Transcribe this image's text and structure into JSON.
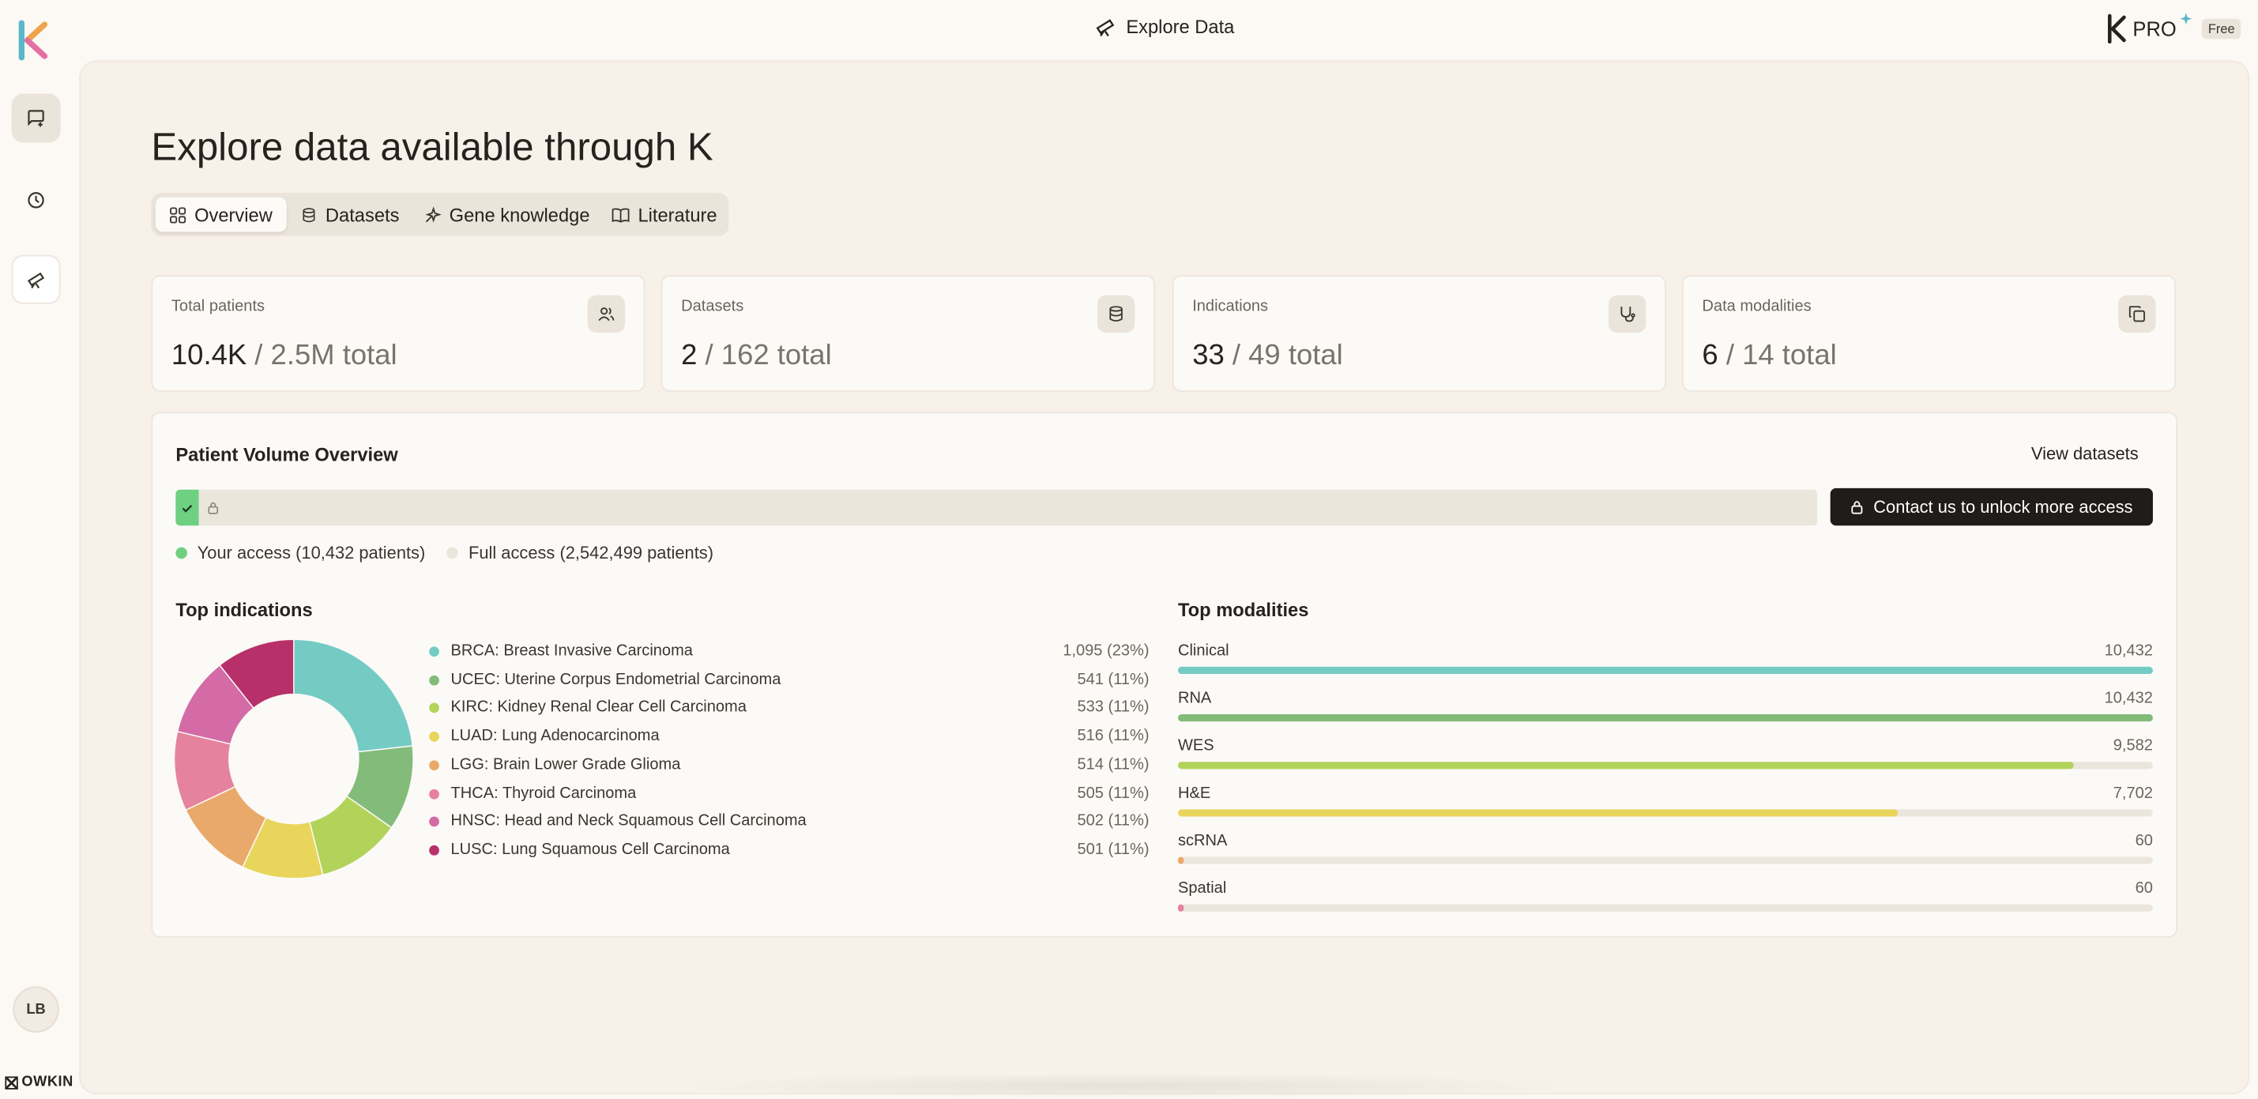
{
  "header": {
    "title": "Explore Data",
    "brand": "PRO",
    "plan": "Free"
  },
  "sidebar": {
    "avatar": "LB",
    "footer": "OWKIN"
  },
  "page": {
    "title": "Explore data available through K",
    "tabs": [
      "Overview",
      "Datasets",
      "Gene knowledge",
      "Literature"
    ]
  },
  "stats": [
    {
      "label": "Total patients",
      "value": "10.4K",
      "total": "/ 2.5M total"
    },
    {
      "label": "Datasets",
      "value": "2",
      "total": "/ 162 total"
    },
    {
      "label": "Indications",
      "value": "33",
      "total": "/ 49 total"
    },
    {
      "label": "Data modalities",
      "value": "6",
      "total": "/ 14 total"
    }
  ],
  "volume": {
    "title": "Patient Volume Overview",
    "link": "View datasets",
    "button": "Contact us to unlock more access",
    "legend": [
      "Your access (10,432 patients)",
      "Full access (2,542,499 patients)"
    ]
  },
  "indications": {
    "type": "pie",
    "title": "Top indications",
    "items": [
      {
        "label": "BRCA: Breast Invasive Carcinoma",
        "value": 1095,
        "value_label": "1,095 (23%)",
        "color": "#74cbc4"
      },
      {
        "label": "UCEC: Uterine Corpus Endometrial Carcinoma",
        "value": 541,
        "value_label": "541 (11%)",
        "color": "#82bb7a"
      },
      {
        "label": "KIRC: Kidney Renal Clear Cell Carcinoma",
        "value": 533,
        "value_label": "533 (11%)",
        "color": "#b2d35a"
      },
      {
        "label": "LUAD: Lung Adenocarcinoma",
        "value": 516,
        "value_label": "516 (11%)",
        "color": "#e8d55c"
      },
      {
        "label": "LGG: Brain Lower Grade Glioma",
        "value": 514,
        "value_label": "514 (11%)",
        "color": "#e9a96a"
      },
      {
        "label": "THCA: Thyroid Carcinoma",
        "value": 505,
        "value_label": "505 (11%)",
        "color": "#e5829e"
      },
      {
        "label": "HNSC: Head and Neck Squamous Cell Carcinoma",
        "value": 502,
        "value_label": "502 (11%)",
        "color": "#d46aa6"
      },
      {
        "label": "LUSC: Lung Squamous Cell Carcinoma",
        "value": 501,
        "value_label": "501 (11%)",
        "color": "#b8306a"
      }
    ]
  },
  "modalities": {
    "type": "bar",
    "title": "Top modalities",
    "xlim": [
      0,
      10432
    ],
    "items": [
      {
        "label": "Clinical",
        "value": 10432,
        "value_label": "10,432",
        "color": "#74cbc4"
      },
      {
        "label": "RNA",
        "value": 10432,
        "value_label": "10,432",
        "color": "#82bb7a"
      },
      {
        "label": "WES",
        "value": 9582,
        "value_label": "9,582",
        "color": "#b2d35a"
      },
      {
        "label": "H&E",
        "value": 7702,
        "value_label": "7,702",
        "color": "#e8d55c"
      },
      {
        "label": "scRNA",
        "value": 60,
        "value_label": "60",
        "color": "#e9a96a"
      },
      {
        "label": "Spatial",
        "value": 60,
        "value_label": "60",
        "color": "#e5829e"
      }
    ]
  }
}
